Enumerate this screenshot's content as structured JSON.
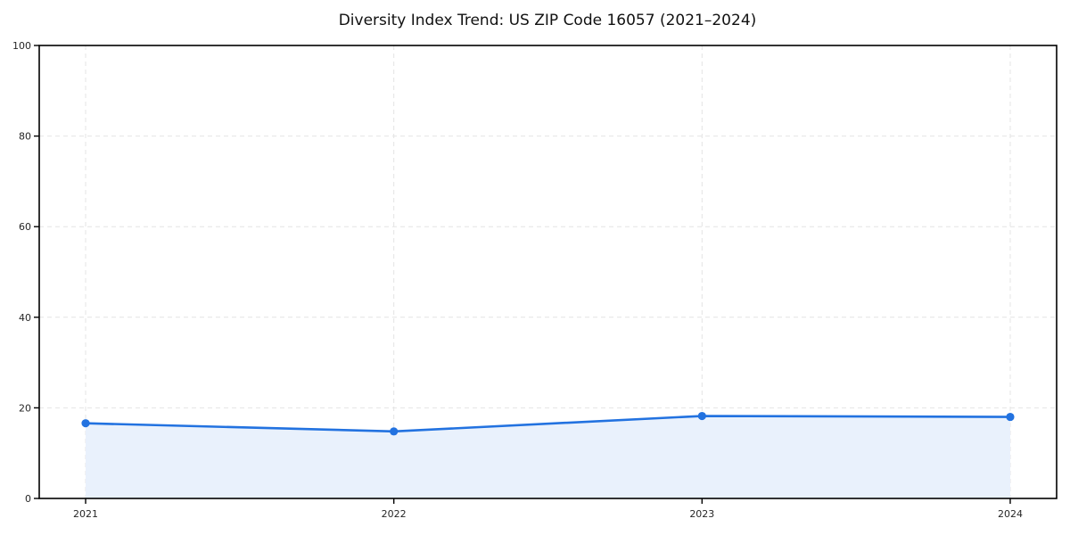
{
  "page": {
    "background_color": "#ffffff"
  },
  "chart_data": {
    "type": "line",
    "title": "Diversity Index Trend: US ZIP Code 16057 (2021–2024)",
    "categories": [
      "2021",
      "2022",
      "2023",
      "2024"
    ],
    "series": [
      {
        "name": "Diversity Index",
        "values": [
          16.6,
          14.8,
          18.2,
          18.0
        ]
      }
    ],
    "xlabel": "",
    "ylabel": "",
    "ylim": [
      0,
      100
    ],
    "y_ticks": [
      0,
      20,
      40,
      60,
      80,
      100
    ],
    "grid": true,
    "grid_style": "dashed",
    "legend_position": "none",
    "line_color": "#2272e0",
    "marker_color": "#2272e0",
    "area_fill": true,
    "fill_color": "#e9f1fc",
    "grid_color": "#e4e4e4",
    "axis_color": "#000000",
    "text_color": "#262626"
  }
}
